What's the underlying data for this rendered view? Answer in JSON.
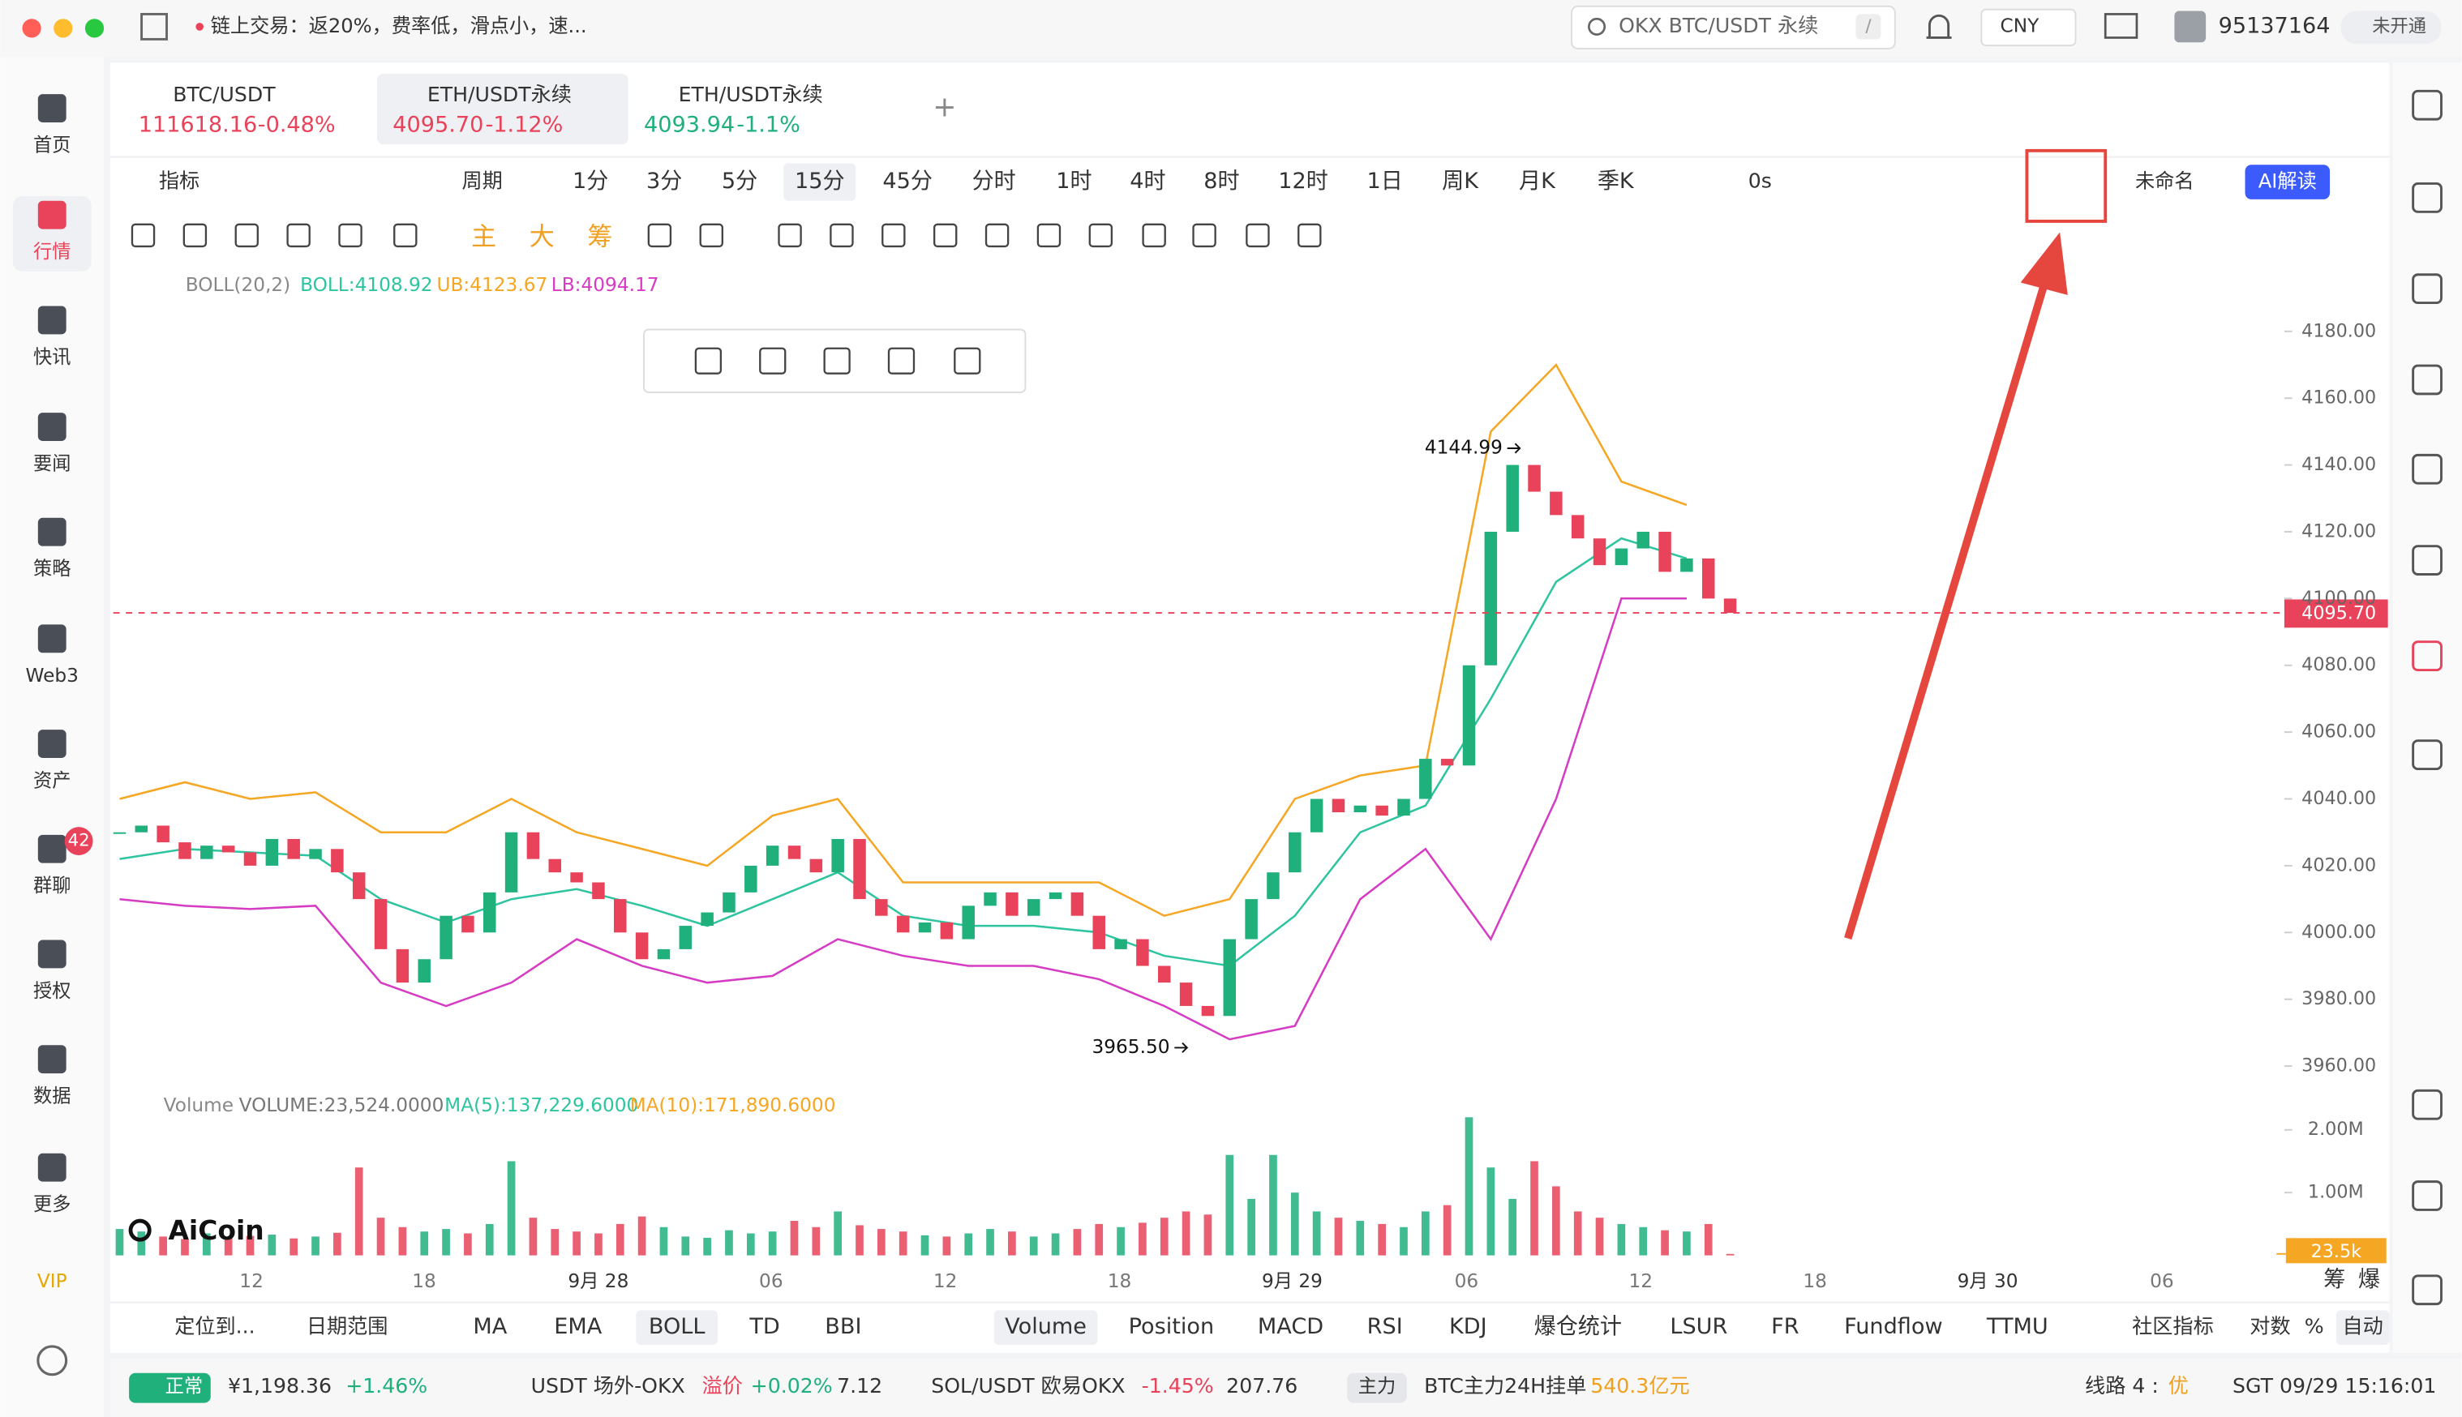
{
  "topbar": {
    "notice": "链上交易：返20%，费率低，滑点小，速...",
    "search": "OKX BTC/USDT 永续",
    "search_shortcut": "/",
    "currency": "CNY",
    "user_id": "95137164",
    "vip_status": "未开通"
  },
  "sidebar": {
    "items": [
      "首页",
      "行情",
      "快讯",
      "要闻",
      "策略",
      "Web3",
      "资产",
      "群聊",
      "授权",
      "数据",
      "更多",
      "VIP"
    ],
    "badge": 42
  },
  "tabs": [
    {
      "symbol": "BTC/USDT",
      "price": "111618.16",
      "change": "-0.48%"
    },
    {
      "symbol": "ETH/USDT永续",
      "price": "4095.70",
      "change": "-1.12%"
    },
    {
      "symbol": "ETH/USDT永续",
      "price": "4093.94",
      "change": "-1.1%"
    }
  ],
  "toolbar": {
    "indicator": "指标",
    "period": "周期",
    "intervals": [
      "1分",
      "3分",
      "5分",
      "15分",
      "45分",
      "分时",
      "1时",
      "4时",
      "8时",
      "12时",
      "1日",
      "周K",
      "月K",
      "季K"
    ],
    "countdown": "0s",
    "layout_name": "未命名",
    "ai": "AI解读"
  },
  "draw_tools": [
    "主",
    "大",
    "筹"
  ],
  "chart_data": {
    "type": "candlestick",
    "indicator_label": "BOLL(20,2)",
    "boll_legend": [
      "BOLL:4108.92",
      "UB:4123.67",
      "LB:4094.17"
    ],
    "closes": [
      4030,
      4032,
      4027,
      4022,
      4026,
      4024,
      4020,
      4028,
      4022,
      4025,
      4018,
      4010,
      3995,
      3985,
      3992,
      4005,
      4000,
      4012,
      4030,
      4022,
      4018,
      4015,
      4010,
      4000,
      3992,
      3995,
      4002,
      4006,
      4012,
      4020,
      4026,
      4022,
      4018,
      4028,
      4010,
      4005,
      4000,
      4003,
      3998,
      4008,
      4012,
      4005,
      4010,
      4012,
      4005,
      3995,
      3998,
      3990,
      3985,
      3978,
      3975,
      3998,
      4010,
      4018,
      4030,
      4040,
      4036,
      4038,
      4035,
      4040,
      4052,
      4050,
      4080,
      4120,
      4140,
      4132,
      4125,
      4118,
      4110,
      4115,
      4120,
      4108,
      4112,
      4100,
      4095.7
    ],
    "up_color": "#1fb07c",
    "down_color": "#e8435a",
    "boll_upper": {
      "color": "#f5a623",
      "values": [
        4040,
        4045,
        4040,
        4042,
        4030,
        4030,
        4040,
        4030,
        4025,
        4020,
        4035,
        4040,
        4015,
        4015,
        4015,
        4015,
        4005,
        4010,
        4040,
        4047,
        4050,
        4150,
        4170,
        4135,
        4128
      ]
    },
    "boll_mid": {
      "color": "#2ec4a0",
      "values": [
        4022,
        4025,
        4024,
        4023,
        4010,
        4003,
        4010,
        4013,
        4008,
        4002,
        4010,
        4018,
        4005,
        4002,
        4002,
        4000,
        3993,
        3990,
        4005,
        4030,
        4038,
        4070,
        4105,
        4118,
        4112
      ]
    },
    "boll_lower": {
      "color": "#d63bc4",
      "values": [
        4010,
        4008,
        4007,
        4008,
        3985,
        3978,
        3985,
        3998,
        3990,
        3985,
        3987,
        3998,
        3993,
        3990,
        3990,
        3986,
        3978,
        3968,
        3972,
        4010,
        4025,
        3998,
        4040,
        4100,
        4100
      ]
    },
    "ylim": [
      3955,
      4197
    ],
    "yticks": [
      {
        "value": 3960,
        "label": "3960.00"
      },
      {
        "value": 3980,
        "label": "3980.00"
      },
      {
        "value": 4000,
        "label": "4000.00"
      },
      {
        "value": 4020,
        "label": "4020.00"
      },
      {
        "value": 4040,
        "label": "4040.00"
      },
      {
        "value": 4060,
        "label": "4060.00"
      },
      {
        "value": 4080,
        "label": "4080.00"
      },
      {
        "value": 4100,
        "label": "4100.00"
      },
      {
        "value": 4120,
        "label": "4120.00"
      },
      {
        "value": 4140,
        "label": "4140.00"
      },
      {
        "value": 4160,
        "label": "4160.00"
      },
      {
        "value": 4180,
        "label": "4180.00"
      }
    ],
    "last_price": {
      "value": 4095.7,
      "label": "4095.70"
    },
    "high_mark": {
      "value": 4144.99,
      "label": "4144.99"
    },
    "low_mark": {
      "value": 3965.5,
      "label": "3965.50"
    },
    "volume_label": "Volume",
    "volume_legend": [
      "VOLUME:23,524.0000",
      "MA(5):137,229.6000",
      "MA(10):171,890.6000"
    ],
    "volume": [
      420000,
      380000,
      300000,
      260000,
      350000,
      280000,
      310000,
      330000,
      270000,
      300000,
      360000,
      1400000,
      600000,
      450000,
      380000,
      420000,
      350000,
      500000,
      1500000,
      600000,
      420000,
      380000,
      350000,
      500000,
      620000,
      450000,
      300000,
      280000,
      400000,
      350000,
      380000,
      550000,
      450000,
      700000,
      480000,
      420000,
      380000,
      320000,
      300000,
      350000,
      420000,
      380000,
      300000,
      350000,
      420000,
      500000,
      450000,
      520000,
      600000,
      700000,
      650000,
      1600000,
      900000,
      1600000,
      1000000,
      700000,
      600000,
      550000,
      500000,
      450000,
      700000,
      800000,
      2200000,
      1400000,
      900000,
      1500000,
      1100000,
      700000,
      600000,
      500000,
      450000,
      400000,
      380000,
      500000,
      23524
    ],
    "volume_ylim": [
      0,
      2200000
    ],
    "volume_yticks": [
      {
        "value": 1000000,
        "label": "1.00M"
      },
      {
        "value": 2000000,
        "label": "2.00M"
      }
    ],
    "last_volume": {
      "value": 23524,
      "label": "23.5k"
    },
    "xlabels": [
      "12",
      "18",
      "9月 28",
      "06",
      "12",
      "18",
      "9月 29",
      "06",
      "12",
      "18",
      "9月 30",
      "06"
    ]
  },
  "corner_labels": [
    "筹",
    "爆"
  ],
  "watermark": "AiCoin",
  "indicator_bar": {
    "locate": "定位到...",
    "date_range": "日期范围",
    "main": [
      "MA",
      "EMA",
      "BOLL",
      "TD",
      "BBI"
    ],
    "sub": [
      "Volume",
      "Position",
      "MACD",
      "RSI",
      "KDJ",
      "爆仓统计",
      "LSUR",
      "FR",
      "Fundflow",
      "TTMU"
    ],
    "community": "社区指标",
    "log": "对数",
    "percent": "%",
    "auto": "自动"
  },
  "statusbar": {
    "status": "正常",
    "price": "¥1,198.36",
    "change": "+1.46%",
    "usdt": "USDT 场外-OKX",
    "premium_label": "溢价",
    "premium": "+0.02%",
    "usdt_price": "7.12",
    "sol": "SOL/USDT 欧易OKX",
    "sol_change": "-1.45%",
    "sol_price": "207.76",
    "main_tag": "主力",
    "btc_orders": "BTC主力24H挂单",
    "btc_orders_value": "540.3亿元",
    "line": "线路 4 :",
    "line_quality": "优",
    "clock": "SGT 09/29 15:16:01"
  }
}
